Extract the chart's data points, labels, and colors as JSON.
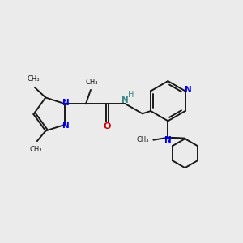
{
  "bg_color": "#ebebeb",
  "black": "#1a1a1a",
  "blue": "#0000ee",
  "red": "#cc0000",
  "teal": "#3d8a8a",
  "lw": 1.4,
  "xlim": [
    0,
    10
  ],
  "ylim": [
    0,
    10
  ],
  "figsize": [
    3.0,
    3.0
  ],
  "dpi": 100
}
